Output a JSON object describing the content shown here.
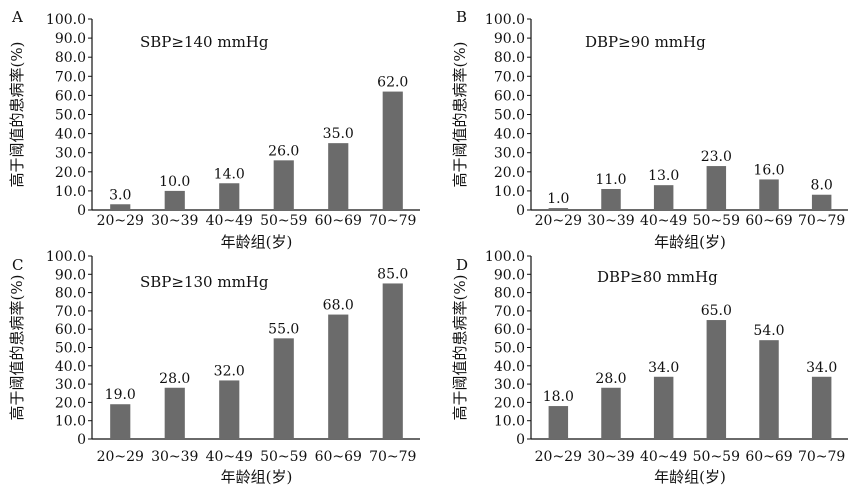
{
  "chart_data": [
    {
      "type": "bar",
      "panel": "A",
      "annotation": "SBP≥140 mmHg",
      "categories": [
        "20~29",
        "30~39",
        "40~49",
        "50~59",
        "60~69",
        "70~79"
      ],
      "values": [
        3.0,
        10.0,
        14.0,
        26.0,
        35.0,
        62.0
      ],
      "value_labels": [
        "3.0",
        "10.0",
        "14.0",
        "26.0",
        "35.0",
        "62.0"
      ],
      "ylabel": "高于阈值的患病率(%)",
      "xlabel": "年龄组(岁)",
      "ylim": [
        0,
        100
      ],
      "yticks": [
        "0",
        "10.0",
        "20.0",
        "30.0",
        "40.0",
        "50.0",
        "60.0",
        "70.0",
        "80.0",
        "90.0",
        "100.0"
      ],
      "bar_color": "#6b6b6b",
      "grid": false
    },
    {
      "type": "bar",
      "panel": "B",
      "annotation": "DBP≥90 mmHg",
      "categories": [
        "20~29",
        "30~39",
        "40~49",
        "50~59",
        "60~69",
        "70~79"
      ],
      "values": [
        1.0,
        11.0,
        13.0,
        23.0,
        16.0,
        8.0
      ],
      "value_labels": [
        "1.0",
        "11.0",
        "13.0",
        "23.0",
        "16.0",
        "8.0"
      ],
      "ylabel": "高于阈值的患病率(%)",
      "xlabel": "年龄组(岁)",
      "ylim": [
        0,
        100
      ],
      "yticks": [
        "0",
        "10.0",
        "20.0",
        "30.0",
        "40.0",
        "50.0",
        "60.0",
        "70.0",
        "80.0",
        "90.0",
        "100.0"
      ],
      "bar_color": "#6b6b6b",
      "grid": false
    },
    {
      "type": "bar",
      "panel": "C",
      "annotation": "SBP≥130 mmHg",
      "categories": [
        "20~29",
        "30~39",
        "40~49",
        "50~59",
        "60~69",
        "70~79"
      ],
      "values": [
        19.0,
        28.0,
        32.0,
        55.0,
        68.0,
        85.0
      ],
      "value_labels": [
        "19.0",
        "28.0",
        "32.0",
        "55.0",
        "68.0",
        "85.0"
      ],
      "ylabel": "高于阈值的患病率(%)",
      "xlabel": "年龄组(岁)",
      "ylim": [
        0,
        100
      ],
      "yticks": [
        "0",
        "10.0",
        "20.0",
        "30.0",
        "40.0",
        "50.0",
        "60.0",
        "70.0",
        "80.0",
        "90.0",
        "100.0"
      ],
      "bar_color": "#6b6b6b",
      "grid": false
    },
    {
      "type": "bar",
      "panel": "D",
      "annotation": "DBP≥80 mmHg",
      "categories": [
        "20~29",
        "30~39",
        "40~49",
        "50~59",
        "60~69",
        "70~79"
      ],
      "values": [
        18.0,
        28.0,
        34.0,
        65.0,
        54.0,
        34.0
      ],
      "value_labels": [
        "18.0",
        "28.0",
        "34.0",
        "65.0",
        "54.0",
        "34.0"
      ],
      "ylabel": "高于阈值的患病率(%)",
      "xlabel": "年龄组(岁)",
      "ylim": [
        0,
        100
      ],
      "yticks": [
        "0",
        "10.0",
        "20.0",
        "30.0",
        "40.0",
        "50.0",
        "60.0",
        "70.0",
        "80.0",
        "90.0",
        "100.0"
      ],
      "bar_color": "#6b6b6b",
      "grid": false
    }
  ]
}
